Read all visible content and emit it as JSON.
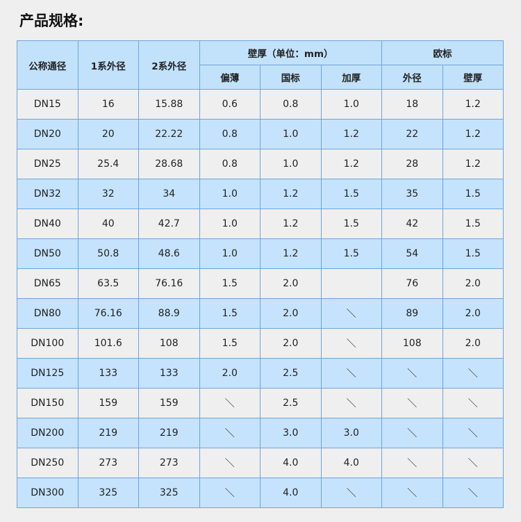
{
  "title": "产品规格:",
  "headers": {
    "nominal": "公称通径",
    "od1": "1系外径",
    "od2": "2系外径",
    "wall_group": "壁厚（单位：mm）",
    "wall_thin": "偏薄",
    "wall_national": "国标",
    "wall_thick": "加厚",
    "eu_group": "欧标",
    "eu_od": "外径",
    "eu_wall": "壁厚"
  },
  "rows": [
    [
      "DN15",
      "16",
      "15.88",
      "0.6",
      "0.8",
      "1.0",
      "18",
      "1.2"
    ],
    [
      "DN20",
      "20",
      "22.22",
      "0.8",
      "1.0",
      "1.2",
      "22",
      "1.2"
    ],
    [
      "DN25",
      "25.4",
      "28.68",
      "0.8",
      "1.0",
      "1.2",
      "28",
      "1.2"
    ],
    [
      "DN32",
      "32",
      "34",
      "1.0",
      "1.2",
      "1.5",
      "35",
      "1.5"
    ],
    [
      "DN40",
      "40",
      "42.7",
      "1.0",
      "1.2",
      "1.5",
      "42",
      "1.5"
    ],
    [
      "DN50",
      "50.8",
      "48.6",
      "1.0",
      "1.2",
      "1.5",
      "54",
      "1.5"
    ],
    [
      "DN65",
      "63.5",
      "76.16",
      "1.5",
      "2.0",
      "",
      "76",
      "2.0"
    ],
    [
      "DN80",
      "76.16",
      "88.9",
      "1.5",
      "2.0",
      "＼",
      "89",
      "2.0"
    ],
    [
      "DN100",
      "101.6",
      "108",
      "1.5",
      "2.0",
      "＼",
      "108",
      "2.0"
    ],
    [
      "DN125",
      "133",
      "133",
      "2.0",
      "2.5",
      "＼",
      "＼",
      "＼"
    ],
    [
      "DN150",
      "159",
      "159",
      "＼",
      "2.5",
      "＼",
      "＼",
      "＼"
    ],
    [
      "DN200",
      "219",
      "219",
      "＼",
      "3.0",
      "3.0",
      "＼",
      "＼"
    ],
    [
      "DN250",
      "273",
      "273",
      "＼",
      "4.0",
      "4.0",
      "＼",
      "＼"
    ],
    [
      "DN300",
      "325",
      "325",
      "＼",
      "4.0",
      "＼",
      "＼",
      "＼"
    ]
  ]
}
